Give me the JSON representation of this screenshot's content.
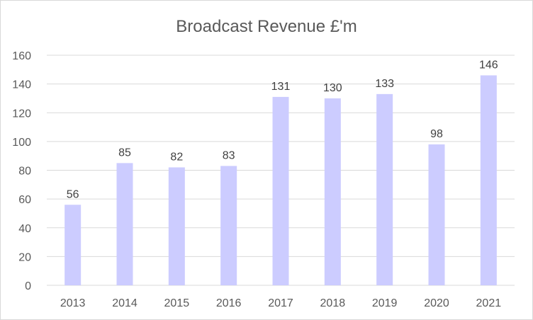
{
  "chart_data": {
    "type": "bar",
    "title": "Broadcast Revenue £'m",
    "xlabel": "",
    "ylabel": "",
    "categories": [
      "2013",
      "2014",
      "2015",
      "2016",
      "2017",
      "2018",
      "2019",
      "2020",
      "2021"
    ],
    "values": [
      56,
      85,
      82,
      83,
      131,
      130,
      133,
      98,
      146
    ],
    "data_labels": [
      "56",
      "85",
      "82",
      "83",
      "131",
      "130",
      "133",
      "98",
      "146"
    ],
    "ylim": [
      0,
      160
    ],
    "yticks": [
      0,
      20,
      40,
      60,
      80,
      100,
      120,
      140,
      160
    ],
    "ytick_labels": [
      "0",
      "20",
      "40",
      "60",
      "80",
      "100",
      "120",
      "140",
      "160"
    ],
    "grid": true,
    "legend": "none",
    "bar_color": "#ccccff"
  }
}
